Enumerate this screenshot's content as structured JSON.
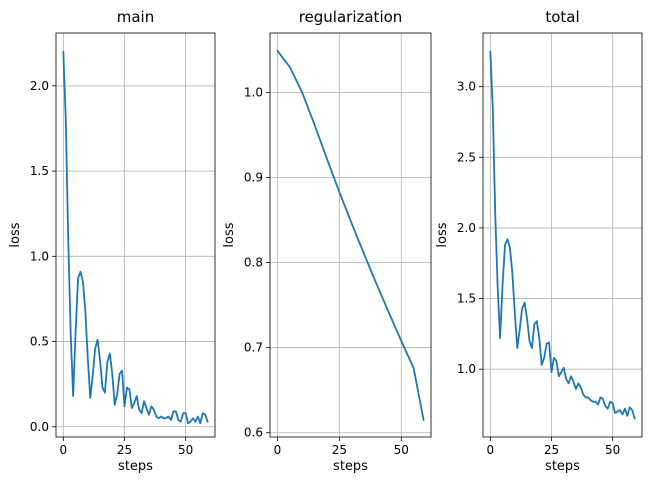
{
  "chart_data": [
    {
      "type": "line",
      "title": "main",
      "xlabel": "steps",
      "ylabel": "loss",
      "xlim": [
        -3,
        62
      ],
      "ylim": [
        -0.06,
        2.31
      ],
      "xticks": [
        0,
        25,
        50
      ],
      "xtick_labels": [
        "0",
        "25",
        "50"
      ],
      "yticks": [
        0.0,
        0.5,
        1.0,
        1.5,
        2.0
      ],
      "ytick_labels": [
        "0.0",
        "0.5",
        "1.0",
        "1.5",
        "2.0"
      ],
      "grid": true,
      "color": "#1f77b4",
      "x": [
        0,
        1,
        2,
        3,
        4,
        5,
        6,
        7,
        8,
        9,
        10,
        11,
        12,
        13,
        14,
        15,
        16,
        17,
        18,
        19,
        20,
        21,
        22,
        23,
        24,
        25,
        26,
        27,
        28,
        29,
        30,
        31,
        32,
        33,
        34,
        35,
        36,
        37,
        38,
        39,
        40,
        41,
        42,
        43,
        44,
        45,
        46,
        47,
        48,
        49,
        50,
        51,
        52,
        53,
        54,
        55,
        56,
        57,
        58,
        59
      ],
      "y": [
        2.2,
        1.8,
        1.1,
        0.55,
        0.18,
        0.55,
        0.87,
        0.91,
        0.85,
        0.68,
        0.4,
        0.17,
        0.3,
        0.46,
        0.51,
        0.39,
        0.23,
        0.2,
        0.38,
        0.43,
        0.31,
        0.13,
        0.19,
        0.31,
        0.33,
        0.12,
        0.23,
        0.22,
        0.11,
        0.14,
        0.18,
        0.1,
        0.08,
        0.15,
        0.11,
        0.07,
        0.12,
        0.1,
        0.06,
        0.05,
        0.06,
        0.05,
        0.05,
        0.06,
        0.04,
        0.09,
        0.09,
        0.04,
        0.03,
        0.08,
        0.08,
        0.02,
        0.03,
        0.05,
        0.03,
        0.06,
        0.02,
        0.08,
        0.07,
        0.03
      ]
    },
    {
      "type": "line",
      "title": "regularization",
      "xlabel": "steps",
      "ylabel": "loss",
      "xlim": [
        -3,
        62
      ],
      "ylim": [
        0.595,
        1.07
      ],
      "xticks": [
        0,
        25,
        50
      ],
      "xtick_labels": [
        "0",
        "25",
        "50"
      ],
      "yticks": [
        0.6,
        0.7,
        0.8,
        0.9,
        1.0
      ],
      "ytick_labels": [
        "0.6",
        "0.7",
        "0.8",
        "0.9",
        "1.0"
      ],
      "grid": true,
      "color": "#1f77b4",
      "x": [
        0,
        5,
        10,
        15,
        20,
        25,
        30,
        35,
        40,
        45,
        50,
        55,
        59
      ],
      "y": [
        1.049,
        1.03,
        1.0,
        0.962,
        0.922,
        0.883,
        0.846,
        0.81,
        0.775,
        0.741,
        0.708,
        0.676,
        0.615
      ]
    },
    {
      "type": "line",
      "title": "total",
      "xlabel": "steps",
      "ylabel": "loss",
      "xlim": [
        -3,
        62
      ],
      "ylim": [
        0.52,
        3.38
      ],
      "xticks": [
        0,
        25,
        50
      ],
      "xtick_labels": [
        "0",
        "25",
        "50"
      ],
      "yticks": [
        1.0,
        1.5,
        2.0,
        2.5,
        3.0
      ],
      "ytick_labels": [
        "1.0",
        "1.5",
        "2.0",
        "2.5",
        "3.0"
      ],
      "grid": true,
      "color": "#1f77b4",
      "x": [
        0,
        1,
        2,
        3,
        4,
        5,
        6,
        7,
        8,
        9,
        10,
        11,
        12,
        13,
        14,
        15,
        16,
        17,
        18,
        19,
        20,
        21,
        22,
        23,
        24,
        25,
        26,
        27,
        28,
        29,
        30,
        31,
        32,
        33,
        34,
        35,
        36,
        37,
        38,
        39,
        40,
        41,
        42,
        43,
        44,
        45,
        46,
        47,
        48,
        49,
        50,
        51,
        52,
        53,
        54,
        55,
        56,
        57,
        58,
        59
      ],
      "y": [
        3.25,
        2.85,
        2.1,
        1.58,
        1.22,
        1.6,
        1.88,
        1.92,
        1.86,
        1.68,
        1.4,
        1.15,
        1.28,
        1.43,
        1.47,
        1.36,
        1.2,
        1.15,
        1.32,
        1.34,
        1.22,
        1.03,
        1.08,
        1.18,
        1.19,
        0.98,
        1.08,
        1.06,
        0.95,
        0.98,
        1.01,
        0.93,
        0.9,
        0.95,
        0.91,
        0.86,
        0.9,
        0.87,
        0.82,
        0.8,
        0.8,
        0.78,
        0.77,
        0.77,
        0.75,
        0.8,
        0.79,
        0.74,
        0.72,
        0.77,
        0.76,
        0.69,
        0.7,
        0.71,
        0.68,
        0.72,
        0.67,
        0.73,
        0.71,
        0.65
      ]
    }
  ]
}
